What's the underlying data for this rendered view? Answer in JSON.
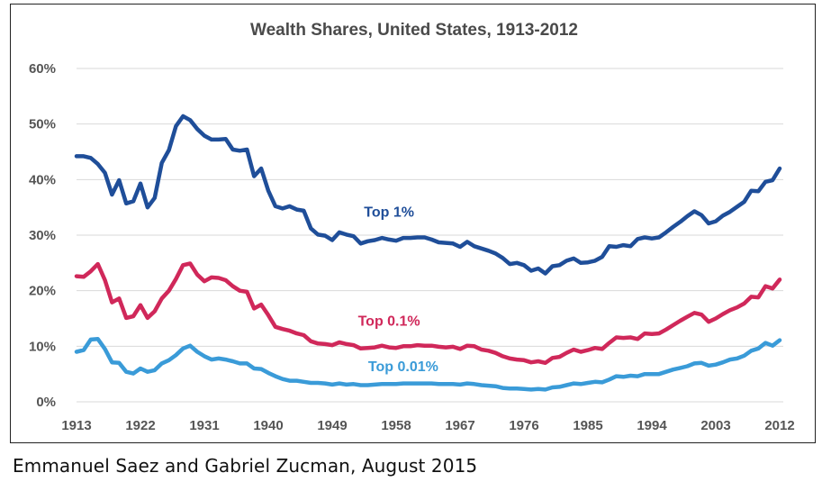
{
  "caption": "Emmanuel Saez and Gabriel Zucman, August 2015",
  "chart_data": {
    "type": "line",
    "title": "Wealth Shares, United States, 1913-2012",
    "xlabel": "",
    "ylabel": "",
    "xlim": [
      1913,
      2012
    ],
    "ylim": [
      0,
      60
    ],
    "grid": true,
    "y_ticks": [
      "0%",
      "10%",
      "20%",
      "30%",
      "40%",
      "50%",
      "60%"
    ],
    "y_tick_values": [
      0,
      10,
      20,
      30,
      40,
      50,
      60
    ],
    "x_ticks": [
      "1913",
      "1922",
      "1931",
      "1940",
      "1949",
      "1958",
      "1967",
      "1976",
      "1985",
      "1994",
      "2003",
      "2012"
    ],
    "x_tick_values": [
      1913,
      1922,
      1931,
      1940,
      1949,
      1958,
      1967,
      1976,
      1985,
      1994,
      2003,
      2012
    ],
    "series": [
      {
        "name": "Top 1%",
        "color": "#1f4e99",
        "label_at": [
          1957,
          33.3
        ],
        "points": [
          [
            1913,
            44.2
          ],
          [
            1914,
            44.2
          ],
          [
            1915,
            43.9
          ],
          [
            1916,
            42.8
          ],
          [
            1917,
            41.2
          ],
          [
            1918,
            37.3
          ],
          [
            1919,
            39.9
          ],
          [
            1920,
            35.7
          ],
          [
            1921,
            36.1
          ],
          [
            1922,
            39.3
          ],
          [
            1923,
            35.0
          ],
          [
            1924,
            36.7
          ],
          [
            1925,
            43.0
          ],
          [
            1926,
            45.3
          ],
          [
            1927,
            49.6
          ],
          [
            1928,
            51.4
          ],
          [
            1929,
            50.7
          ],
          [
            1930,
            49.1
          ],
          [
            1931,
            47.9
          ],
          [
            1932,
            47.2
          ],
          [
            1933,
            47.2
          ],
          [
            1934,
            47.3
          ],
          [
            1935,
            45.4
          ],
          [
            1936,
            45.2
          ],
          [
            1937,
            45.4
          ],
          [
            1938,
            40.6
          ],
          [
            1939,
            42.0
          ],
          [
            1940,
            38.0
          ],
          [
            1941,
            35.2
          ],
          [
            1942,
            34.8
          ],
          [
            1943,
            35.2
          ],
          [
            1944,
            34.6
          ],
          [
            1945,
            34.4
          ],
          [
            1946,
            31.2
          ],
          [
            1947,
            30.1
          ],
          [
            1948,
            29.9
          ],
          [
            1949,
            29.1
          ],
          [
            1950,
            30.5
          ],
          [
            1951,
            30.1
          ],
          [
            1952,
            29.8
          ],
          [
            1953,
            28.5
          ],
          [
            1954,
            28.9
          ],
          [
            1955,
            29.1
          ],
          [
            1956,
            29.5
          ],
          [
            1957,
            29.2
          ],
          [
            1958,
            29.0
          ],
          [
            1959,
            29.5
          ],
          [
            1960,
            29.5
          ],
          [
            1961,
            29.6
          ],
          [
            1962,
            29.6
          ],
          [
            1963,
            29.2
          ],
          [
            1964,
            28.7
          ],
          [
            1965,
            28.6
          ],
          [
            1966,
            28.5
          ],
          [
            1967,
            27.9
          ],
          [
            1968,
            28.8
          ],
          [
            1969,
            28.0
          ],
          [
            1970,
            27.6
          ],
          [
            1971,
            27.2
          ],
          [
            1972,
            26.7
          ],
          [
            1973,
            25.9
          ],
          [
            1974,
            24.8
          ],
          [
            1975,
            25.0
          ],
          [
            1976,
            24.6
          ],
          [
            1977,
            23.6
          ],
          [
            1978,
            24.0
          ],
          [
            1979,
            23.1
          ],
          [
            1980,
            24.4
          ],
          [
            1981,
            24.6
          ],
          [
            1982,
            25.4
          ],
          [
            1983,
            25.8
          ],
          [
            1984,
            25.0
          ],
          [
            1985,
            25.1
          ],
          [
            1986,
            25.4
          ],
          [
            1987,
            26.1
          ],
          [
            1988,
            28.0
          ],
          [
            1989,
            27.9
          ],
          [
            1990,
            28.2
          ],
          [
            1991,
            28.0
          ],
          [
            1992,
            29.3
          ],
          [
            1993,
            29.6
          ],
          [
            1994,
            29.4
          ],
          [
            1995,
            29.6
          ],
          [
            1996,
            30.5
          ],
          [
            1997,
            31.5
          ],
          [
            1998,
            32.4
          ],
          [
            1999,
            33.4
          ],
          [
            2000,
            34.3
          ],
          [
            2001,
            33.6
          ],
          [
            2002,
            32.1
          ],
          [
            2003,
            32.5
          ],
          [
            2004,
            33.5
          ],
          [
            2005,
            34.2
          ],
          [
            2006,
            35.1
          ],
          [
            2007,
            36.0
          ],
          [
            2008,
            38.0
          ],
          [
            2009,
            37.9
          ],
          [
            2010,
            39.6
          ],
          [
            2011,
            39.9
          ],
          [
            2012,
            42.0
          ]
        ]
      },
      {
        "name": "Top 0.1%",
        "color": "#d0285a",
        "label_at": [
          1957,
          13.7
        ],
        "points": [
          [
            1913,
            22.6
          ],
          [
            1914,
            22.5
          ],
          [
            1915,
            23.5
          ],
          [
            1916,
            24.8
          ],
          [
            1917,
            21.9
          ],
          [
            1918,
            17.9
          ],
          [
            1919,
            18.6
          ],
          [
            1920,
            15.1
          ],
          [
            1921,
            15.4
          ],
          [
            1922,
            17.4
          ],
          [
            1923,
            15.1
          ],
          [
            1924,
            16.3
          ],
          [
            1925,
            18.6
          ],
          [
            1926,
            20.0
          ],
          [
            1927,
            22.1
          ],
          [
            1928,
            24.6
          ],
          [
            1929,
            24.9
          ],
          [
            1930,
            22.9
          ],
          [
            1931,
            21.7
          ],
          [
            1932,
            22.4
          ],
          [
            1933,
            22.3
          ],
          [
            1934,
            21.9
          ],
          [
            1935,
            20.8
          ],
          [
            1936,
            20.0
          ],
          [
            1937,
            19.8
          ],
          [
            1938,
            16.8
          ],
          [
            1939,
            17.5
          ],
          [
            1940,
            15.6
          ],
          [
            1941,
            13.5
          ],
          [
            1942,
            13.1
          ],
          [
            1943,
            12.8
          ],
          [
            1944,
            12.3
          ],
          [
            1945,
            12.0
          ],
          [
            1946,
            10.9
          ],
          [
            1947,
            10.5
          ],
          [
            1948,
            10.4
          ],
          [
            1949,
            10.2
          ],
          [
            1950,
            10.7
          ],
          [
            1951,
            10.4
          ],
          [
            1952,
            10.2
          ],
          [
            1953,
            9.6
          ],
          [
            1954,
            9.7
          ],
          [
            1955,
            9.8
          ],
          [
            1956,
            10.1
          ],
          [
            1957,
            9.8
          ],
          [
            1958,
            9.7
          ],
          [
            1959,
            10.0
          ],
          [
            1960,
            10.0
          ],
          [
            1961,
            10.2
          ],
          [
            1962,
            10.1
          ],
          [
            1963,
            10.1
          ],
          [
            1964,
            9.9
          ],
          [
            1965,
            9.8
          ],
          [
            1966,
            9.9
          ],
          [
            1967,
            9.5
          ],
          [
            1968,
            10.1
          ],
          [
            1969,
            10.0
          ],
          [
            1970,
            9.4
          ],
          [
            1971,
            9.2
          ],
          [
            1972,
            8.8
          ],
          [
            1973,
            8.2
          ],
          [
            1974,
            7.8
          ],
          [
            1975,
            7.6
          ],
          [
            1976,
            7.5
          ],
          [
            1977,
            7.1
          ],
          [
            1978,
            7.3
          ],
          [
            1979,
            7.0
          ],
          [
            1980,
            7.9
          ],
          [
            1981,
            8.1
          ],
          [
            1982,
            8.8
          ],
          [
            1983,
            9.4
          ],
          [
            1984,
            9.0
          ],
          [
            1985,
            9.3
          ],
          [
            1986,
            9.7
          ],
          [
            1987,
            9.5
          ],
          [
            1988,
            10.6
          ],
          [
            1989,
            11.6
          ],
          [
            1990,
            11.5
          ],
          [
            1991,
            11.6
          ],
          [
            1992,
            11.3
          ],
          [
            1993,
            12.3
          ],
          [
            1994,
            12.2
          ],
          [
            1995,
            12.3
          ],
          [
            1996,
            13.0
          ],
          [
            1997,
            13.8
          ],
          [
            1998,
            14.6
          ],
          [
            1999,
            15.3
          ],
          [
            2000,
            16.0
          ],
          [
            2001,
            15.7
          ],
          [
            2002,
            14.4
          ],
          [
            2003,
            15.0
          ],
          [
            2004,
            15.8
          ],
          [
            2005,
            16.5
          ],
          [
            2006,
            17.0
          ],
          [
            2007,
            17.7
          ],
          [
            2008,
            18.9
          ],
          [
            2009,
            18.8
          ],
          [
            2010,
            20.8
          ],
          [
            2011,
            20.4
          ],
          [
            2012,
            22.0
          ]
        ]
      },
      {
        "name": "Top 0.01%",
        "color": "#3a9bd8",
        "label_at": [
          1959,
          5.5
        ],
        "points": [
          [
            1913,
            9.0
          ],
          [
            1914,
            9.3
          ],
          [
            1915,
            11.2
          ],
          [
            1916,
            11.3
          ],
          [
            1917,
            9.5
          ],
          [
            1918,
            7.1
          ],
          [
            1919,
            7.0
          ],
          [
            1920,
            5.4
          ],
          [
            1921,
            5.1
          ],
          [
            1922,
            6.0
          ],
          [
            1923,
            5.4
          ],
          [
            1924,
            5.7
          ],
          [
            1925,
            6.9
          ],
          [
            1926,
            7.5
          ],
          [
            1927,
            8.4
          ],
          [
            1928,
            9.6
          ],
          [
            1929,
            10.1
          ],
          [
            1930,
            9.0
          ],
          [
            1931,
            8.2
          ],
          [
            1932,
            7.6
          ],
          [
            1933,
            7.8
          ],
          [
            1934,
            7.6
          ],
          [
            1935,
            7.3
          ],
          [
            1936,
            6.9
          ],
          [
            1937,
            6.9
          ],
          [
            1938,
            6.0
          ],
          [
            1939,
            5.9
          ],
          [
            1940,
            5.2
          ],
          [
            1941,
            4.6
          ],
          [
            1942,
            4.1
          ],
          [
            1943,
            3.8
          ],
          [
            1944,
            3.8
          ],
          [
            1945,
            3.6
          ],
          [
            1946,
            3.4
          ],
          [
            1947,
            3.4
          ],
          [
            1948,
            3.3
          ],
          [
            1949,
            3.1
          ],
          [
            1950,
            3.3
          ],
          [
            1951,
            3.1
          ],
          [
            1952,
            3.2
          ],
          [
            1953,
            3.0
          ],
          [
            1954,
            3.0
          ],
          [
            1955,
            3.1
          ],
          [
            1956,
            3.2
          ],
          [
            1957,
            3.2
          ],
          [
            1958,
            3.2
          ],
          [
            1959,
            3.3
          ],
          [
            1960,
            3.3
          ],
          [
            1961,
            3.3
          ],
          [
            1962,
            3.3
          ],
          [
            1963,
            3.3
          ],
          [
            1964,
            3.2
          ],
          [
            1965,
            3.2
          ],
          [
            1966,
            3.2
          ],
          [
            1967,
            3.1
          ],
          [
            1968,
            3.3
          ],
          [
            1969,
            3.2
          ],
          [
            1970,
            3.0
          ],
          [
            1971,
            2.9
          ],
          [
            1972,
            2.8
          ],
          [
            1973,
            2.5
          ],
          [
            1974,
            2.4
          ],
          [
            1975,
            2.4
          ],
          [
            1976,
            2.3
          ],
          [
            1977,
            2.2
          ],
          [
            1978,
            2.3
          ],
          [
            1979,
            2.2
          ],
          [
            1980,
            2.6
          ],
          [
            1981,
            2.7
          ],
          [
            1982,
            3.0
          ],
          [
            1983,
            3.3
          ],
          [
            1984,
            3.2
          ],
          [
            1985,
            3.4
          ],
          [
            1986,
            3.6
          ],
          [
            1987,
            3.5
          ],
          [
            1988,
            4.0
          ],
          [
            1989,
            4.6
          ],
          [
            1990,
            4.5
          ],
          [
            1991,
            4.7
          ],
          [
            1992,
            4.6
          ],
          [
            1993,
            5.0
          ],
          [
            1994,
            5.0
          ],
          [
            1995,
            5.0
          ],
          [
            1996,
            5.4
          ],
          [
            1997,
            5.8
          ],
          [
            1998,
            6.1
          ],
          [
            1999,
            6.4
          ],
          [
            2000,
            6.9
          ],
          [
            2001,
            7.0
          ],
          [
            2002,
            6.5
          ],
          [
            2003,
            6.7
          ],
          [
            2004,
            7.1
          ],
          [
            2005,
            7.6
          ],
          [
            2006,
            7.8
          ],
          [
            2007,
            8.3
          ],
          [
            2008,
            9.2
          ],
          [
            2009,
            9.6
          ],
          [
            2010,
            10.6
          ],
          [
            2011,
            10.1
          ],
          [
            2012,
            11.1
          ]
        ]
      }
    ]
  }
}
